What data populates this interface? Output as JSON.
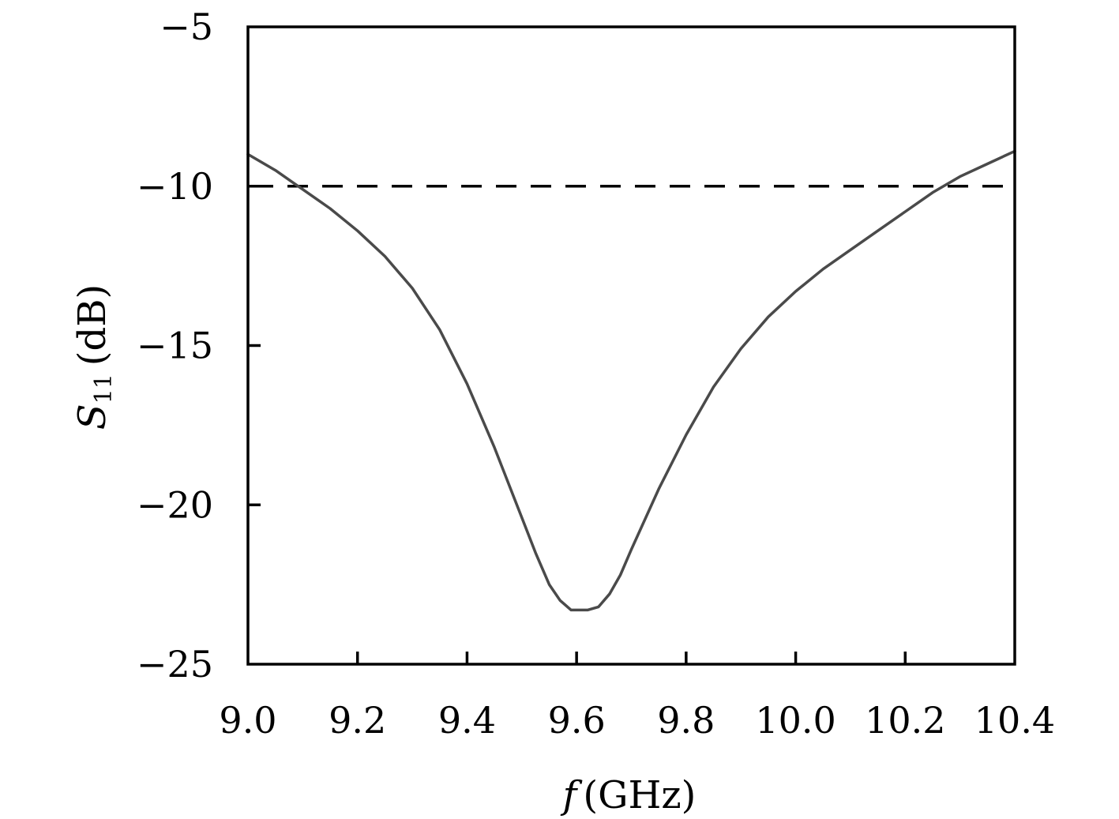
{
  "chart_data": {
    "type": "line",
    "title": "",
    "xlabel": {
      "symbol": "f",
      "unit": "(GHz)"
    },
    "ylabel": {
      "symbol": "S",
      "subscript": "11",
      "unit": "(dB)"
    },
    "xlim": [
      9.0,
      10.4
    ],
    "ylim": [
      -25,
      -5
    ],
    "xticks": [
      9.0,
      9.2,
      9.4,
      9.6,
      9.8,
      10.0,
      10.2,
      10.4
    ],
    "xtick_labels": [
      "9.0",
      "9.2",
      "9.4",
      "9.6",
      "9.8",
      "10.0",
      "10.2",
      "10.4"
    ],
    "yticks": [
      -5,
      -10,
      -15,
      -20,
      -25
    ],
    "ytick_labels": [
      "−5",
      "−10",
      "−15",
      "−20",
      "−25"
    ],
    "grid": false,
    "reference_line": {
      "y": -10,
      "style": "dashed",
      "color": "#000000"
    },
    "series": [
      {
        "color": "#4a4a4a",
        "x": [
          9.0,
          9.05,
          9.1,
          9.15,
          9.2,
          9.25,
          9.3,
          9.35,
          9.4,
          9.45,
          9.5,
          9.525,
          9.55,
          9.57,
          9.59,
          9.62,
          9.64,
          9.66,
          9.68,
          9.7,
          9.75,
          9.8,
          9.85,
          9.9,
          9.95,
          10.0,
          10.05,
          10.1,
          10.15,
          10.2,
          10.25,
          10.3,
          10.35,
          10.4
        ],
        "y": [
          -9.0,
          -9.5,
          -10.1,
          -10.7,
          -11.4,
          -12.2,
          -13.2,
          -14.5,
          -16.2,
          -18.2,
          -20.4,
          -21.5,
          -22.5,
          -23.0,
          -23.3,
          -23.3,
          -23.2,
          -22.8,
          -22.2,
          -21.4,
          -19.5,
          -17.8,
          -16.3,
          -15.1,
          -14.1,
          -13.3,
          -12.6,
          -12.0,
          -11.4,
          -10.8,
          -10.2,
          -9.7,
          -9.3,
          -8.9
        ]
      }
    ]
  }
}
